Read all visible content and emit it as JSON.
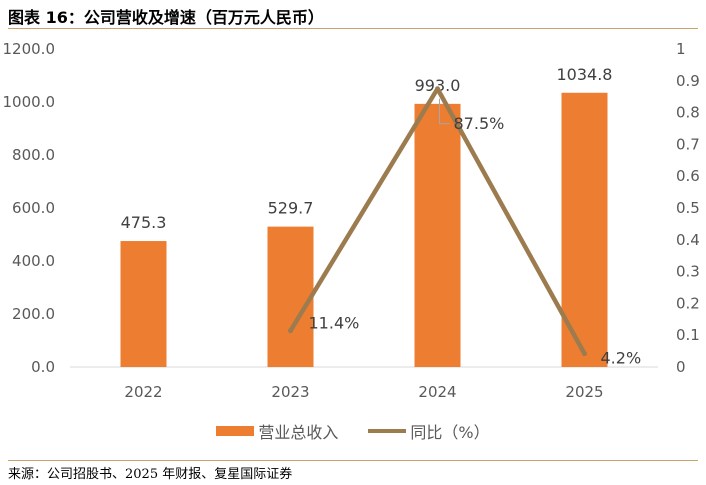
{
  "page": {
    "title": "图表 16：公司营收及增速（百万元人民币）",
    "source": "来源：公司招股书、2025 年财报、复星国际证券"
  },
  "colors": {
    "bar": "#ED7D31",
    "line": "#9C7B4F",
    "axis": "#d9d9d9",
    "text": "#595959"
  },
  "chart_data": {
    "type": "bar",
    "categories": [
      "2022",
      "2023",
      "2024",
      "2025"
    ],
    "series": [
      {
        "name": "营业总收入",
        "type": "bar",
        "axis": "left",
        "values": [
          475.3,
          529.7,
          993.0,
          1034.8
        ],
        "labels": [
          "475.3",
          "529.7",
          "993.0",
          "1034.8"
        ]
      },
      {
        "name": "同比（%）",
        "type": "line",
        "axis": "right",
        "values": [
          null,
          0.114,
          0.875,
          0.042
        ],
        "labels": [
          "",
          "11.4%",
          "87.5%",
          "4.2%"
        ]
      }
    ],
    "y_left": {
      "min": 0,
      "max": 1200,
      "step": 200,
      "ticks": [
        "0.0",
        "200.0",
        "400.0",
        "600.0",
        "800.0",
        "1000.0",
        "1200.0"
      ]
    },
    "y_right": {
      "min": 0,
      "max": 1,
      "step": 0.1,
      "ticks": [
        "0",
        "0.1",
        "0.2",
        "0.3",
        "0.4",
        "0.5",
        "0.6",
        "0.7",
        "0.8",
        "0.9",
        "1"
      ]
    },
    "legend": "bottom",
    "grid": false
  }
}
